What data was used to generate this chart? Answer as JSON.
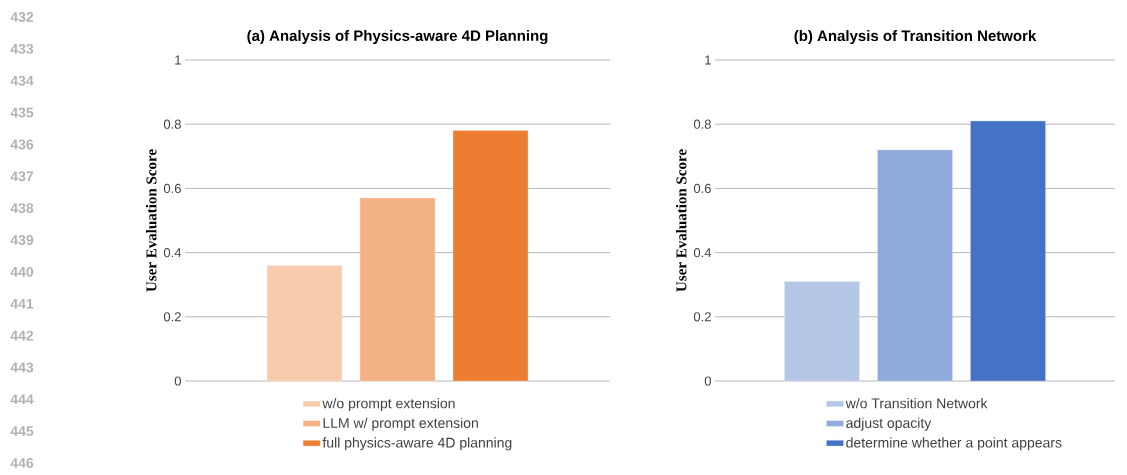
{
  "chart_data": [
    {
      "type": "bar",
      "title": "(a) Analysis of Physics-aware 4D Planning",
      "ylabel": "User Evaluation Score",
      "categories": [
        null
      ],
      "series": [
        {
          "name": "w/o prompt extension",
          "color": "#f8cbad",
          "values": [
            0.36
          ]
        },
        {
          "name": "LLM w/ prompt extension",
          "color": "#f4b183",
          "values": [
            0.57
          ]
        },
        {
          "name": "full physics-aware 4D planning",
          "color": "#ed7d31",
          "values": [
            0.78
          ]
        }
      ],
      "ylim": [
        0,
        1
      ],
      "yticks": [
        0,
        0.2,
        0.4,
        0.6,
        0.8,
        1
      ],
      "grid": "y",
      "legend": "bottom",
      "annotations": [
        "432",
        "433",
        "434",
        "435",
        "436",
        "437",
        "438",
        "439",
        "440",
        "441",
        "442",
        "443",
        "444",
        "445",
        "446"
      ]
    },
    {
      "type": "bar",
      "title": "(b) Analysis of Transition Network",
      "ylabel": "User Evaluation Score",
      "categories": [
        null
      ],
      "series": [
        {
          "name": "w/o Transition Network",
          "color": "#b4c7e7",
          "values": [
            0.31
          ]
        },
        {
          "name": "adjust opacity",
          "color": "#8faadc",
          "values": [
            0.72
          ]
        },
        {
          "name": "determine whether a point appears",
          "color": "#4472c4",
          "values": [
            0.81
          ]
        }
      ],
      "ylim": [
        0,
        1
      ],
      "yticks": [
        0,
        0.2,
        0.4,
        0.6,
        0.8,
        1
      ],
      "grid": "y",
      "legend": "bottom"
    }
  ]
}
